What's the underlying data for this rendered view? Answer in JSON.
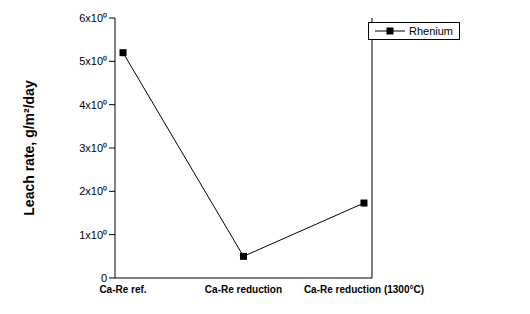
{
  "chart_data": {
    "type": "line",
    "categories": [
      "Ca-Re ref.",
      "Ca-Re reduction",
      "Ca-Re reduction (1300°C)"
    ],
    "y_label": "Leach rate, g/m²/day",
    "series": [
      {
        "name": "Rhenium",
        "color": "#000000",
        "marker": "square",
        "line_style": "solid",
        "values": [
          5.2,
          0.5,
          1.73
        ]
      }
    ],
    "ylim": [
      0,
      6
    ],
    "yticks": [
      0,
      {
        "value": 1,
        "label": "1x10⁰"
      },
      {
        "value": 2,
        "label": "2x10⁰"
      },
      {
        "value": 3,
        "label": "3x10⁰"
      },
      {
        "value": 4,
        "label": "4x10⁰"
      },
      {
        "value": 5,
        "label": "5x10⁰"
      },
      {
        "value": 6,
        "label": "6x10⁰"
      }
    ],
    "grid": false,
    "legend": "upper right"
  }
}
